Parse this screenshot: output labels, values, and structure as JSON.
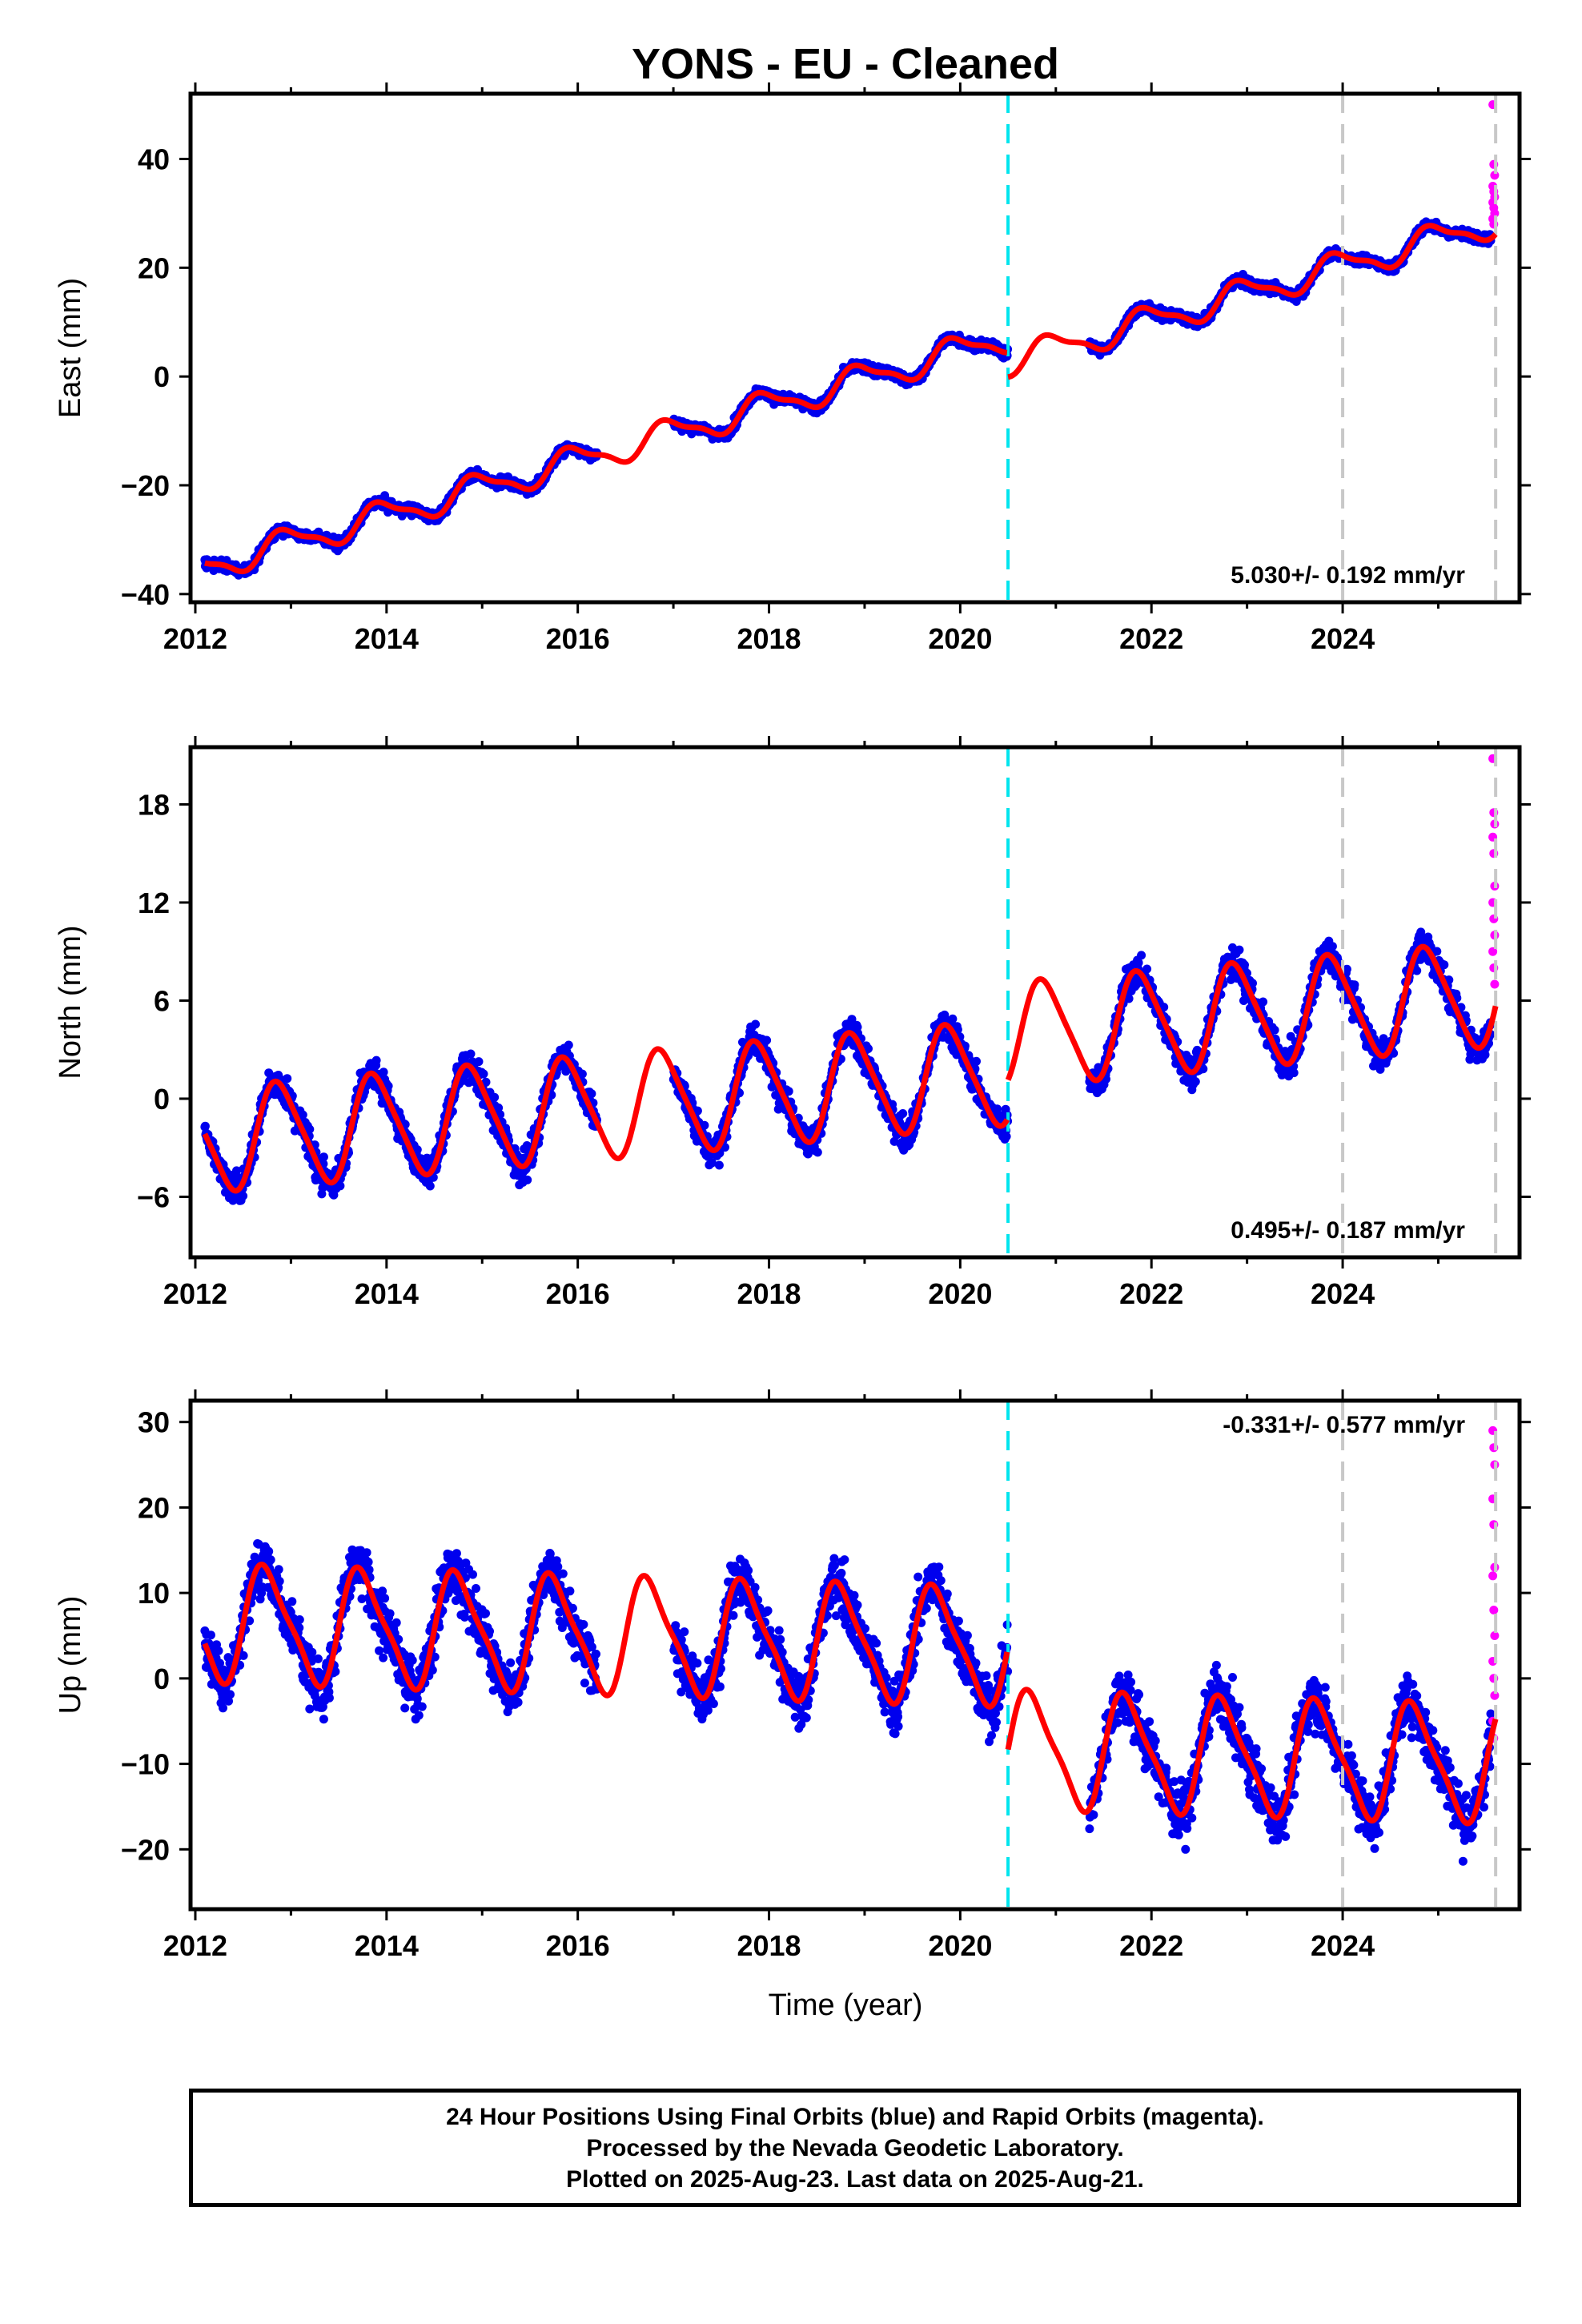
{
  "title": "YONS  - EU - Cleaned",
  "x_axis_label": "Time (year)",
  "footer": {
    "line1": "24 Hour Positions Using Final Orbits (blue) and Rapid Orbits (magenta).",
    "line2": "Processed by the Nevada Geodetic Laboratory.",
    "line3": "Plotted on 2025-Aug-23. Last data on 2025-Aug-21."
  },
  "colors": {
    "final_orbits": "#0000ee",
    "rapid_orbits": "#ff00ff",
    "model": "#ff0000",
    "equipment_change": "#00e5ee",
    "year_marker": "#c8c8c8"
  },
  "chart_data": [
    {
      "type": "scatter",
      "ylabel": "East (mm)",
      "rate_text": "5.030+/- 0.192 mm/yr",
      "xlim": [
        2011.95,
        2025.85
      ],
      "ylim": [
        -41.5,
        52
      ],
      "yticks": [
        -40,
        -20,
        0,
        20,
        40
      ],
      "xticks": [
        2012,
        2014,
        2016,
        2018,
        2020,
        2022,
        2024
      ],
      "rate": 5.03,
      "offset_at_2012": -35.5,
      "annual_amp": 2.5,
      "annual_phase": 0.7,
      "semiannual_amp": 0.8,
      "step_at_break": -4.5,
      "noise": 1.2,
      "rapid_values": [
        50,
        39,
        37,
        35,
        34,
        33,
        32,
        31,
        30,
        29,
        28
      ],
      "rapid_start": 30
    },
    {
      "type": "scatter",
      "ylabel": "North (mm)",
      "rate_text": "0.495+/- 0.187 mm/yr",
      "xlim": [
        2011.95,
        2025.85
      ],
      "ylim": [
        -9.7,
        21.5
      ],
      "yticks": [
        -6,
        0,
        6,
        12,
        18
      ],
      "xticks": [
        2012,
        2014,
        2016,
        2018,
        2020,
        2022,
        2024
      ],
      "rate": 0.495,
      "offset_at_2012": -2.6,
      "annual_amp": 3.1,
      "annual_phase": 0.63,
      "semiannual_amp": 0.5,
      "step_at_break": 2.3,
      "noise": 1.2,
      "rapid_values": [
        20.8,
        17.5,
        16.8,
        16.0,
        15.0,
        13.0,
        12.0,
        11.0,
        10.0,
        9.0,
        8.0,
        7.0
      ],
      "rapid_start": 6.5
    },
    {
      "type": "scatter",
      "ylabel": "Up (mm)",
      "rate_text": "-0.331+/- 0.577 mm/yr",
      "xlim": [
        2011.95,
        2025.85
      ],
      "ylim": [
        -27,
        32.5
      ],
      "yticks": [
        -20,
        -10,
        0,
        10,
        20,
        30
      ],
      "xticks": [
        2012,
        2014,
        2016,
        2018,
        2020,
        2022,
        2024
      ],
      "rate": -0.331,
      "offset_at_2012": 6.5,
      "annual_amp": 6.5,
      "annual_phase": 0.5,
      "semiannual_amp": 1.5,
      "step_at_break": -12.0,
      "noise": 4.0,
      "rapid_values": [
        29,
        27,
        25,
        21,
        18,
        13,
        12,
        8,
        5,
        2,
        0,
        -2,
        -5,
        -7
      ],
      "rapid_start": 2
    }
  ],
  "equipment_change_year": 2020.5,
  "year_markers": [
    2024.0,
    2025.6
  ],
  "data_gaps": [
    [
      2016.2,
      2017.0
    ],
    [
      2020.5,
      2021.35
    ]
  ],
  "data_start": 2012.1,
  "data_end": 2025.55
}
